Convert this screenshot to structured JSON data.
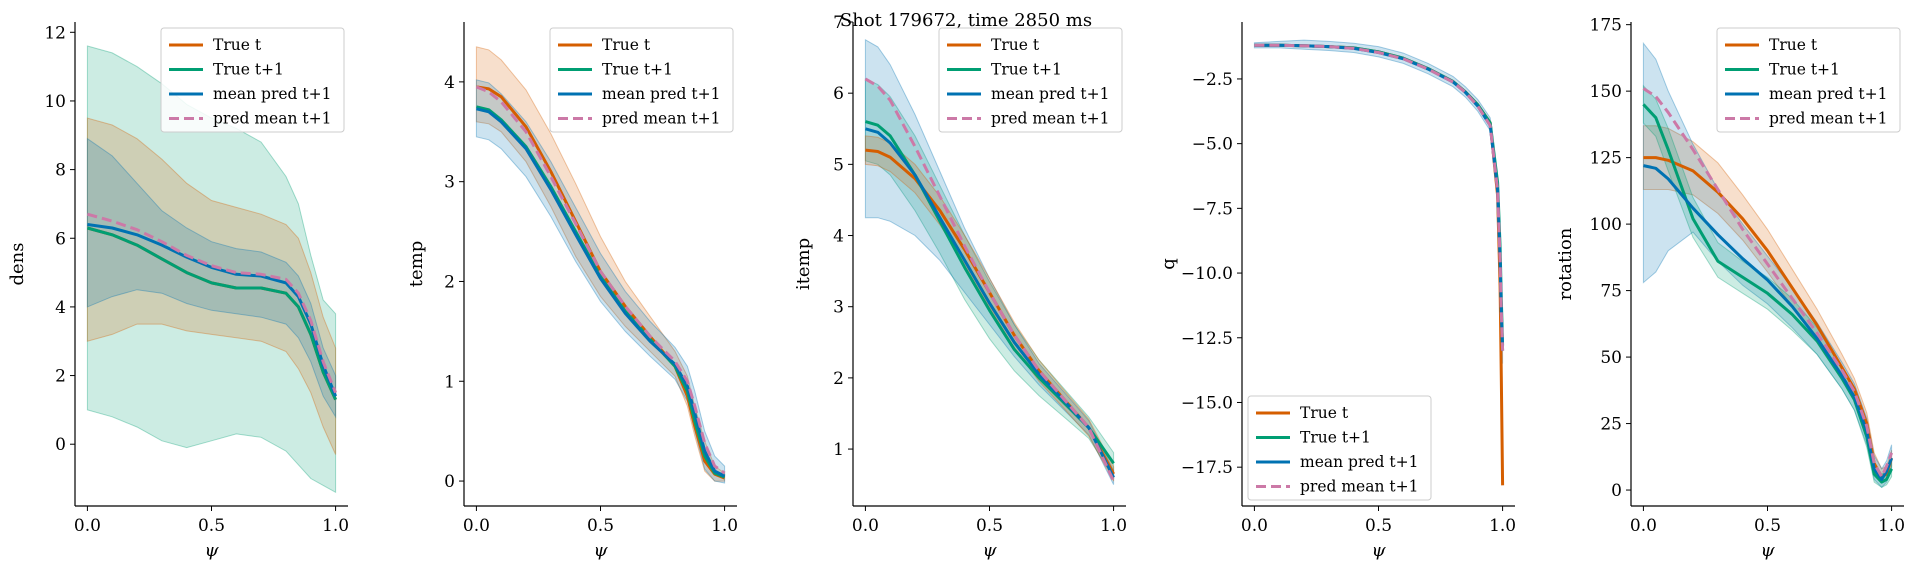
{
  "figure": {
    "title": "Shot 179672, time 2850 ms",
    "colors": {
      "true_t": "#d55e00",
      "true_t1": "#009e73",
      "mean_pred": "#0072b2",
      "pred_mean": "#cc79a7"
    }
  },
  "chart_data": [
    {
      "type": "line",
      "xlabel": "ψ",
      "ylabel": "dens",
      "xlim": [
        -0.05,
        1.05
      ],
      "ylim": [
        -1.8,
        12.3
      ],
      "xticks": [
        0.0,
        0.5,
        1.0
      ],
      "yticks": [
        0,
        2,
        4,
        6,
        8,
        10,
        12
      ],
      "legend_loc": "top-right",
      "x": [
        0.0,
        0.1,
        0.2,
        0.3,
        0.4,
        0.5,
        0.6,
        0.7,
        0.8,
        0.85,
        0.9,
        0.95,
        1.0
      ],
      "series": [
        {
          "name": "True t",
          "values": [
            6.3,
            6.1,
            5.8,
            5.4,
            5.0,
            4.7,
            4.55,
            4.55,
            4.4,
            4.0,
            3.2,
            2.1,
            1.3
          ]
        },
        {
          "name": "True t+1",
          "values": [
            6.3,
            6.1,
            5.8,
            5.4,
            5.0,
            4.7,
            4.55,
            4.55,
            4.4,
            4.0,
            3.2,
            2.1,
            1.3
          ]
        },
        {
          "name": "mean pred t+1",
          "values": [
            6.4,
            6.3,
            6.1,
            5.8,
            5.45,
            5.15,
            4.95,
            4.9,
            4.7,
            4.3,
            3.5,
            2.3,
            1.4
          ]
        },
        {
          "name": "pred mean t+1",
          "values": [
            6.7,
            6.5,
            6.25,
            5.9,
            5.5,
            5.2,
            5.0,
            4.95,
            4.8,
            4.4,
            3.6,
            2.4,
            1.5
          ]
        }
      ],
      "bands": [
        {
          "series": "True t+1",
          "lower": [
            1.0,
            0.8,
            0.5,
            0.1,
            -0.1,
            0.1,
            0.3,
            0.2,
            -0.2,
            -0.6,
            -1.0,
            -1.2,
            -1.4
          ],
          "upper": [
            11.6,
            11.4,
            11.0,
            10.5,
            9.9,
            9.5,
            9.2,
            8.8,
            7.8,
            7.0,
            5.5,
            4.2,
            3.8
          ]
        },
        {
          "series": "True t",
          "lower": [
            3.0,
            3.2,
            3.5,
            3.5,
            3.3,
            3.2,
            3.1,
            3.0,
            2.7,
            2.2,
            1.5,
            0.5,
            -0.3
          ],
          "upper": [
            9.5,
            9.3,
            8.9,
            8.3,
            7.6,
            7.1,
            6.9,
            6.7,
            6.4,
            6.0,
            5.0,
            3.7,
            2.8
          ]
        },
        {
          "series": "mean pred t+1",
          "lower": [
            4.0,
            4.3,
            4.5,
            4.4,
            4.1,
            3.9,
            3.8,
            3.7,
            3.5,
            3.1,
            2.4,
            1.4,
            0.8
          ],
          "upper": [
            8.9,
            8.4,
            7.6,
            6.8,
            6.3,
            5.9,
            5.7,
            5.6,
            5.3,
            4.9,
            4.1,
            2.8,
            2.0
          ]
        }
      ]
    },
    {
      "type": "line",
      "xlabel": "ψ",
      "ylabel": "temp",
      "xlim": [
        -0.05,
        1.05
      ],
      "ylim": [
        -0.25,
        4.6
      ],
      "xticks": [
        0.0,
        0.5,
        1.0
      ],
      "yticks": [
        0,
        1,
        2,
        3,
        4
      ],
      "legend_loc": "top-right",
      "x": [
        0.0,
        0.05,
        0.1,
        0.2,
        0.3,
        0.4,
        0.5,
        0.6,
        0.7,
        0.8,
        0.85,
        0.88,
        0.92,
        0.96,
        1.0
      ],
      "series": [
        {
          "name": "True t",
          "values": [
            3.95,
            3.93,
            3.85,
            3.55,
            3.1,
            2.6,
            2.1,
            1.75,
            1.45,
            1.15,
            0.85,
            0.55,
            0.2,
            0.07,
            0.03
          ]
        },
        {
          "name": "True t+1",
          "values": [
            3.75,
            3.72,
            3.62,
            3.35,
            2.95,
            2.5,
            2.05,
            1.7,
            1.42,
            1.15,
            0.9,
            0.6,
            0.25,
            0.08,
            0.04
          ]
        },
        {
          "name": "mean pred t+1",
          "values": [
            3.73,
            3.7,
            3.6,
            3.33,
            2.92,
            2.47,
            2.03,
            1.68,
            1.4,
            1.17,
            0.95,
            0.68,
            0.3,
            0.1,
            0.05
          ]
        },
        {
          "name": "pred mean t+1",
          "values": [
            3.95,
            3.9,
            3.8,
            3.5,
            3.05,
            2.58,
            2.1,
            1.75,
            1.45,
            1.2,
            1.0,
            0.75,
            0.38,
            0.15,
            0.08
          ]
        }
      ],
      "bands": [
        {
          "series": "True t",
          "lower": [
            3.6,
            3.58,
            3.5,
            3.2,
            2.75,
            2.25,
            1.85,
            1.55,
            1.3,
            1.05,
            0.75,
            0.45,
            0.1,
            0.0,
            0.0
          ],
          "upper": [
            4.35,
            4.32,
            4.22,
            3.92,
            3.48,
            2.98,
            2.45,
            2.0,
            1.65,
            1.3,
            1.05,
            0.75,
            0.4,
            0.15,
            0.08
          ]
        },
        {
          "series": "mean pred t+1",
          "lower": [
            3.45,
            3.42,
            3.33,
            3.05,
            2.65,
            2.2,
            1.8,
            1.5,
            1.25,
            1.02,
            0.8,
            0.5,
            0.12,
            0.0,
            -0.02
          ],
          "upper": [
            4.02,
            3.99,
            3.88,
            3.6,
            3.2,
            2.74,
            2.28,
            1.9,
            1.6,
            1.34,
            1.15,
            0.9,
            0.5,
            0.25,
            0.15
          ]
        }
      ]
    },
    {
      "type": "line",
      "xlabel": "ψ",
      "ylabel": "itemp",
      "xlim": [
        -0.05,
        1.05
      ],
      "ylim": [
        0.2,
        7.0
      ],
      "xticks": [
        0.0,
        0.5,
        1.0
      ],
      "yticks": [
        1,
        2,
        3,
        4,
        5,
        6,
        7
      ],
      "legend_loc": "top-right",
      "x": [
        0.0,
        0.05,
        0.1,
        0.2,
        0.3,
        0.4,
        0.5,
        0.6,
        0.7,
        0.8,
        0.9,
        1.0
      ],
      "series": [
        {
          "name": "True t",
          "values": [
            5.2,
            5.18,
            5.1,
            4.8,
            4.35,
            3.8,
            3.2,
            2.6,
            2.1,
            1.7,
            1.3,
            0.65
          ]
        },
        {
          "name": "True t+1",
          "values": [
            5.6,
            5.55,
            5.4,
            4.85,
            4.2,
            3.55,
            2.95,
            2.4,
            2.0,
            1.65,
            1.3,
            0.8
          ]
        },
        {
          "name": "mean pred t+1",
          "values": [
            5.5,
            5.45,
            5.3,
            4.85,
            4.25,
            3.65,
            3.05,
            2.5,
            2.05,
            1.68,
            1.3,
            0.6
          ]
        },
        {
          "name": "pred mean t+1",
          "values": [
            6.2,
            6.1,
            5.9,
            5.25,
            4.55,
            3.85,
            3.2,
            2.6,
            2.1,
            1.7,
            1.3,
            0.55
          ]
        }
      ],
      "bands": [
        {
          "series": "True t+1",
          "lower": [
            5.05,
            5.0,
            4.85,
            4.35,
            3.75,
            3.1,
            2.55,
            2.1,
            1.75,
            1.45,
            1.15,
            0.6
          ],
          "upper": [
            6.2,
            6.12,
            5.95,
            5.4,
            4.7,
            4.0,
            3.35,
            2.75,
            2.25,
            1.85,
            1.45,
            0.95
          ]
        },
        {
          "series": "mean pred t+1",
          "lower": [
            4.25,
            4.25,
            4.2,
            4.0,
            3.65,
            3.2,
            2.75,
            2.3,
            1.9,
            1.55,
            1.2,
            0.5
          ],
          "upper": [
            6.75,
            6.65,
            6.4,
            5.7,
            4.9,
            4.1,
            3.4,
            2.75,
            2.2,
            1.8,
            1.4,
            0.7
          ]
        },
        {
          "series": "True t",
          "lower": [
            5.0,
            4.98,
            4.9,
            4.6,
            4.15,
            3.6,
            3.0,
            2.42,
            1.95,
            1.57,
            1.18,
            0.55
          ],
          "upper": [
            5.4,
            5.38,
            5.3,
            5.0,
            4.55,
            4.0,
            3.4,
            2.78,
            2.25,
            1.83,
            1.42,
            0.75
          ]
        }
      ]
    },
    {
      "type": "line",
      "xlabel": "ψ",
      "ylabel": "q",
      "xlim": [
        -0.05,
        1.05
      ],
      "ylim": [
        -19.0,
        -0.3
      ],
      "xticks": [
        0.0,
        0.5,
        1.0
      ],
      "yticks": [
        -2.5,
        -5.0,
        -7.5,
        -10.0,
        -12.5,
        -15.0,
        -17.5
      ],
      "legend_loc": "bottom-left",
      "x": [
        0.0,
        0.1,
        0.2,
        0.3,
        0.4,
        0.5,
        0.6,
        0.7,
        0.8,
        0.85,
        0.9,
        0.95,
        0.98,
        0.99,
        0.995,
        1.0
      ],
      "series": [
        {
          "name": "True t",
          "values": [
            -1.2,
            -1.2,
            -1.22,
            -1.25,
            -1.3,
            -1.45,
            -1.7,
            -2.1,
            -2.6,
            -3.0,
            -3.5,
            -4.2,
            -7.0,
            -10.5,
            -14.0,
            -18.2
          ]
        },
        {
          "name": "True t+1",
          "values": [
            -1.2,
            -1.2,
            -1.22,
            -1.25,
            -1.3,
            -1.45,
            -1.7,
            -2.1,
            -2.6,
            -3.0,
            -3.5,
            -4.2,
            -6.5,
            -9.0,
            -11.0,
            -12.8
          ]
        },
        {
          "name": "mean pred t+1",
          "values": [
            -1.2,
            -1.2,
            -1.22,
            -1.25,
            -1.32,
            -1.48,
            -1.72,
            -2.12,
            -2.62,
            -3.02,
            -3.55,
            -4.3,
            -6.8,
            -9.5,
            -11.5,
            -13.0
          ]
        },
        {
          "name": "pred mean t+1",
          "values": [
            -1.2,
            -1.2,
            -1.22,
            -1.25,
            -1.32,
            -1.48,
            -1.72,
            -2.12,
            -2.62,
            -3.02,
            -3.55,
            -4.3,
            -6.8,
            -9.5,
            -11.5,
            -13.0
          ]
        }
      ],
      "bands": [
        {
          "series": "mean pred t+1",
          "lower": [
            -1.3,
            -1.3,
            -1.35,
            -1.4,
            -1.48,
            -1.65,
            -1.9,
            -2.3,
            -2.8,
            -3.2,
            -3.75,
            -4.5,
            -7.2,
            -10.0,
            -12.0,
            -13.5
          ],
          "upper": [
            -1.1,
            -1.05,
            -1.0,
            -1.05,
            -1.12,
            -1.25,
            -1.5,
            -1.9,
            -2.4,
            -2.8,
            -3.3,
            -4.0,
            -6.3,
            -9.0,
            -11.0,
            -12.5
          ]
        }
      ]
    },
    {
      "type": "line",
      "xlabel": "ψ",
      "ylabel": "rotation",
      "xlim": [
        -0.05,
        1.05
      ],
      "ylim": [
        -6,
        176
      ],
      "xticks": [
        0.0,
        0.5,
        1.0
      ],
      "yticks": [
        0,
        25,
        50,
        75,
        100,
        125,
        150,
        175
      ],
      "legend_loc": "top-right",
      "x": [
        0.0,
        0.05,
        0.1,
        0.2,
        0.3,
        0.4,
        0.5,
        0.6,
        0.7,
        0.8,
        0.85,
        0.9,
        0.93,
        0.96,
        0.98,
        1.0
      ],
      "series": [
        {
          "name": "True t",
          "values": [
            125,
            125,
            124,
            120,
            112,
            102,
            90,
            76,
            62,
            46,
            38,
            25,
            10,
            5,
            6,
            12
          ]
        },
        {
          "name": "True t+1",
          "values": [
            145,
            140,
            128,
            102,
            86,
            80,
            74,
            66,
            56,
            42,
            34,
            20,
            6,
            3,
            4,
            8
          ]
        },
        {
          "name": "mean pred t+1",
          "values": [
            122,
            121,
            117,
            106,
            96,
            87,
            79,
            69,
            57,
            43,
            35,
            22,
            8,
            4,
            7,
            12
          ]
        },
        {
          "name": "pred mean t+1",
          "values": [
            151,
            148,
            142,
            128,
            113,
            98,
            85,
            72,
            59,
            45,
            37,
            24,
            10,
            5,
            9,
            14
          ]
        }
      ],
      "bands": [
        {
          "series": "True t",
          "lower": [
            113,
            113,
            113,
            111,
            104,
            94,
            82,
            69,
            56,
            42,
            34,
            21,
            7,
            3,
            4,
            9
          ],
          "upper": [
            137,
            137,
            136,
            131,
            123,
            111,
            98,
            83,
            68,
            51,
            42,
            29,
            14,
            8,
            9,
            15
          ]
        },
        {
          "series": "mean pred t+1",
          "lower": [
            78,
            82,
            90,
            97,
            86,
            77,
            70,
            61,
            51,
            38,
            30,
            17,
            4,
            1,
            3,
            8
          ],
          "upper": [
            168,
            162,
            150,
            130,
            113,
            100,
            88,
            76,
            63,
            48,
            40,
            27,
            13,
            8,
            11,
            17
          ]
        },
        {
          "series": "True t+1",
          "lower": [
            138,
            133,
            120,
            95,
            80,
            74,
            68,
            60,
            51,
            38,
            30,
            16,
            3,
            1,
            2,
            5
          ],
          "upper": [
            152,
            147,
            136,
            110,
            93,
            86,
            80,
            72,
            61,
            46,
            38,
            24,
            10,
            6,
            7,
            11
          ]
        }
      ]
    }
  ]
}
